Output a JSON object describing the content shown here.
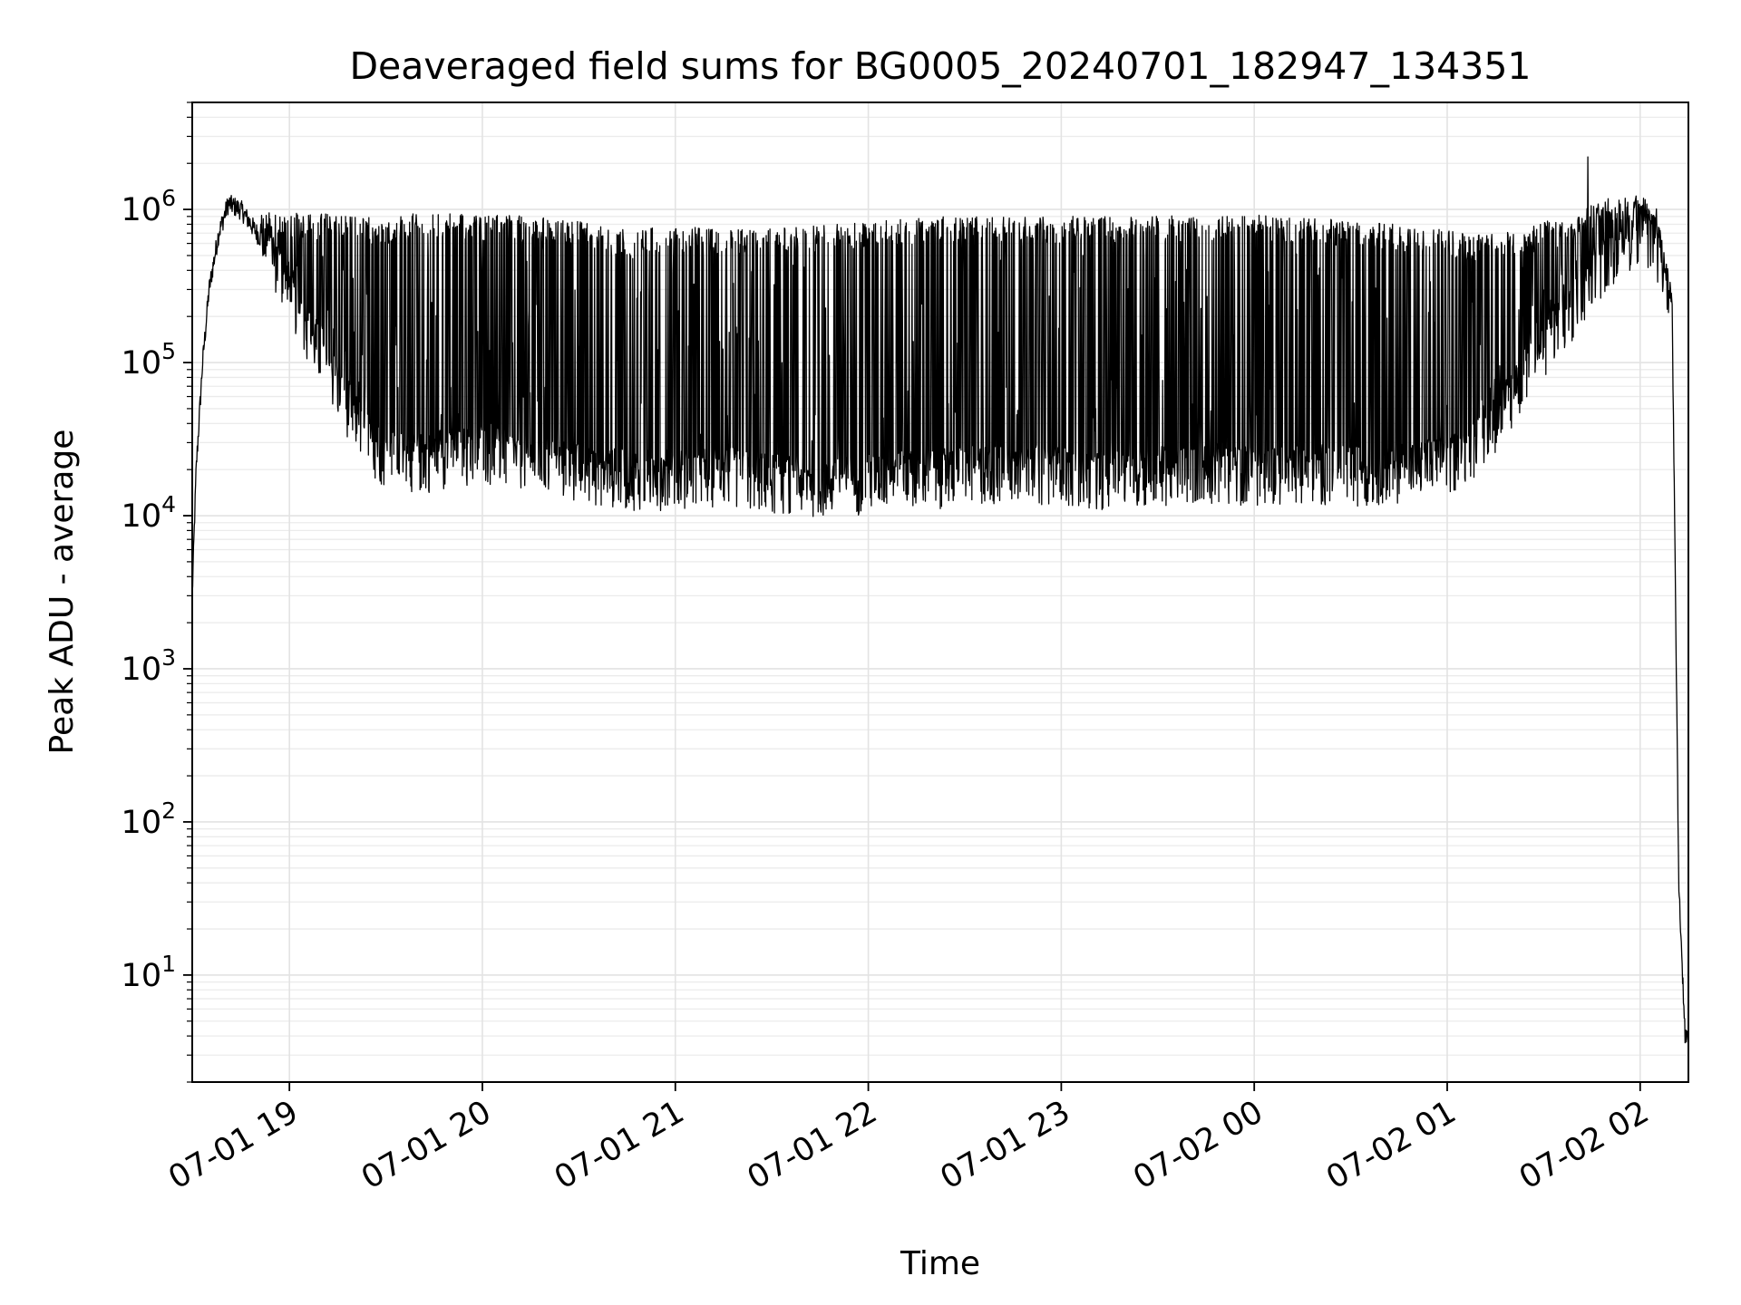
{
  "chart_data": {
    "type": "line",
    "title": "Deaveraged field sums for BG0005_20240701_182947_134351",
    "xlabel": "Time",
    "ylabel": "Peak ADU - average",
    "yscale": "log",
    "grid": "on (major and minor)",
    "legend": "none",
    "xlim": [
      "2024-07-01 18:29:47",
      "2024-07-02 02:15:00"
    ],
    "ylim": [
      2,
      5000000
    ],
    "xticks": [
      "07-01 19",
      "07-01 20",
      "07-01 21",
      "07-01 22",
      "07-01 23",
      "07-02 00",
      "07-02 01",
      "07-02 02"
    ],
    "xtick_times": [
      "2024-07-01 19:00",
      "2024-07-01 20:00",
      "2024-07-01 21:00",
      "2024-07-01 22:00",
      "2024-07-01 23:00",
      "2024-07-02 00:00",
      "2024-07-02 01:00",
      "2024-07-02 02:00"
    ],
    "yticks": [
      {
        "value": 10,
        "base": "10",
        "exp": "1"
      },
      {
        "value": 100,
        "base": "10",
        "exp": "2"
      },
      {
        "value": 1000,
        "base": "10",
        "exp": "3"
      },
      {
        "value": 10000,
        "base": "10",
        "exp": "4"
      },
      {
        "value": 100000,
        "base": "10",
        "exp": "5"
      },
      {
        "value": 1000000,
        "base": "10",
        "exp": "6"
      }
    ],
    "series": [
      {
        "color": "#000000",
        "x": [
          "18:29:47",
          "18:31",
          "18:33",
          "18:35",
          "18:38",
          "18:41",
          "18:45",
          "18:50",
          "18:55",
          "19:00",
          "19:05",
          "19:10",
          "19:15",
          "19:20",
          "19:25",
          "19:30",
          "19:40",
          "19:50",
          "20:00",
          "20:15",
          "20:30",
          "20:45",
          "21:00",
          "21:15",
          "21:30",
          "21:45",
          "22:00",
          "22:15",
          "22:30",
          "22:45",
          "23:00",
          "23:15",
          "23:30",
          "23:45",
          "24:00",
          "24:15",
          "24:30",
          "24:45",
          "25:00",
          "25:10",
          "25:20",
          "25:30",
          "25:40",
          "25:50",
          "26:00",
          "26:05",
          "26:10",
          "26:12",
          "26:14",
          "26:15"
        ],
        "baseline": [
          3000,
          20000,
          100000,
          300000,
          700000,
          1100000,
          1000000,
          700000,
          500000,
          300000,
          180000,
          110000,
          70000,
          45000,
          30000,
          25000,
          23000,
          24000,
          27000,
          22000,
          20000,
          18000,
          18000,
          19000,
          17000,
          16000,
          17000,
          18000,
          19000,
          20000,
          19000,
          18000,
          19000,
          20000,
          19000,
          20000,
          19000,
          20000,
          22000,
          30000,
          60000,
          130000,
          250000,
          450000,
          750000,
          600000,
          200000,
          40,
          4,
          4
        ],
        "spike_envelope": [
          3000,
          20000,
          100000,
          300000,
          800000,
          1300000,
          1400000,
          1000000,
          900000,
          900000,
          900000,
          900000,
          900000,
          850000,
          850000,
          850000,
          900000,
          900000,
          880000,
          860000,
          800000,
          700000,
          750000,
          700000,
          720000,
          750000,
          800000,
          850000,
          860000,
          850000,
          860000,
          860000,
          870000,
          850000,
          880000,
          860000,
          800000,
          760000,
          700000,
          650000,
          700000,
          800000,
          900000,
          1200000,
          1200000,
          1000000,
          300000,
          40,
          4,
          4
        ]
      }
    ]
  }
}
